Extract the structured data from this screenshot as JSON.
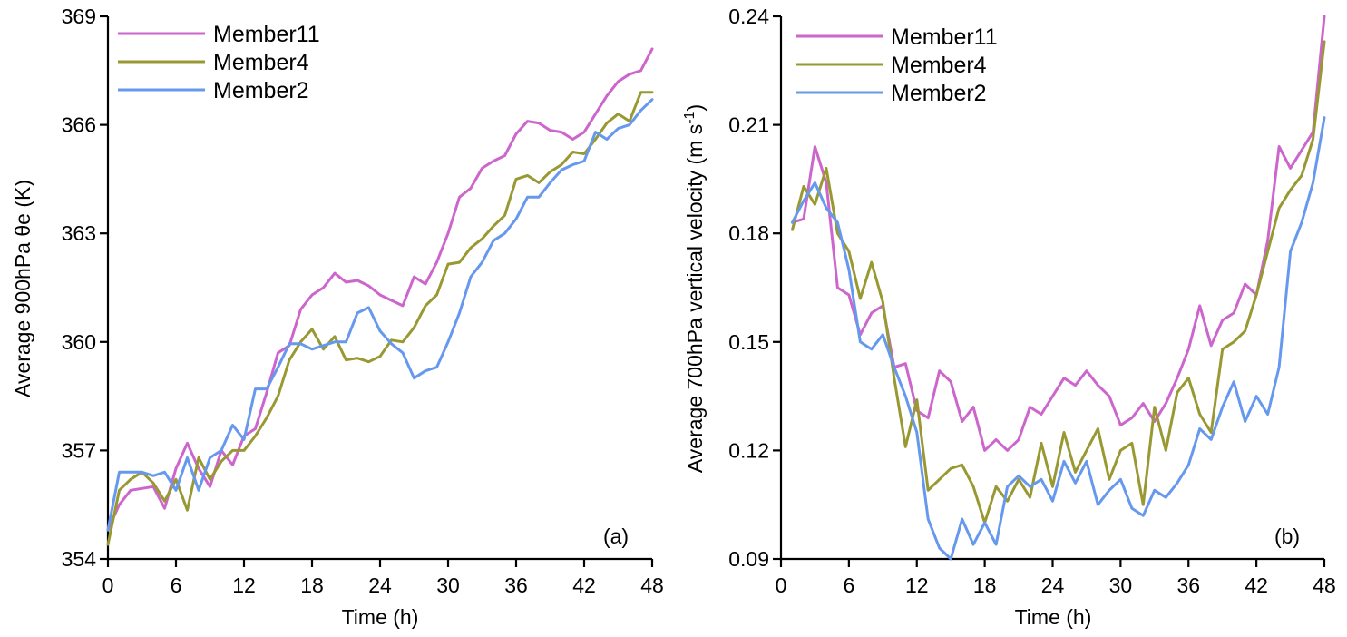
{
  "chart_data": [
    {
      "type": "line",
      "panel_label": "(a)",
      "xlabel": "Time (h)",
      "ylabel": "Average 900hPa θe (K)",
      "xlim": [
        0,
        48
      ],
      "ylim": [
        354,
        369
      ],
      "xticks": [
        0,
        6,
        12,
        18,
        24,
        30,
        36,
        42,
        48
      ],
      "xtick_labels": [
        "0",
        "6",
        "12",
        "18",
        "24",
        "30",
        "36",
        "42",
        "48"
      ],
      "yticks": [
        354,
        357,
        360,
        363,
        366,
        369
      ],
      "ytick_labels": [
        "354",
        "357",
        "360",
        "363",
        "366",
        "369"
      ],
      "legend_position": "top-left",
      "x": [
        0,
        1,
        2,
        3,
        4,
        5,
        6,
        7,
        8,
        9,
        10,
        11,
        12,
        13,
        14,
        15,
        16,
        17,
        18,
        19,
        20,
        21,
        22,
        23,
        24,
        25,
        26,
        27,
        28,
        29,
        30,
        31,
        32,
        33,
        34,
        35,
        36,
        37,
        38,
        39,
        40,
        41,
        42,
        43,
        44,
        45,
        46,
        47,
        48
      ],
      "series": [
        {
          "name": "Member11",
          "color": "#cc66cc",
          "values": [
            354.8,
            355.5,
            355.9,
            355.95,
            356.0,
            355.4,
            356.5,
            357.2,
            356.5,
            356.0,
            357.0,
            356.6,
            357.4,
            357.6,
            358.6,
            359.7,
            359.9,
            360.9,
            361.3,
            361.5,
            361.9,
            361.65,
            361.7,
            361.55,
            361.3,
            361.15,
            361.0,
            361.8,
            361.6,
            362.2,
            363.0,
            364.0,
            364.25,
            364.8,
            365.0,
            365.15,
            365.75,
            366.1,
            366.05,
            365.85,
            365.8,
            365.6,
            365.8,
            366.3,
            366.8,
            367.2,
            367.4,
            367.5,
            368.1
          ]
        },
        {
          "name": "Member4",
          "color": "#999933",
          "values": [
            354.4,
            355.9,
            356.2,
            356.4,
            356.1,
            355.6,
            356.2,
            355.35,
            356.8,
            356.2,
            356.7,
            357.0,
            357.0,
            357.4,
            357.9,
            358.5,
            359.5,
            360.0,
            360.35,
            359.8,
            360.15,
            359.5,
            359.55,
            359.45,
            359.6,
            360.05,
            360.0,
            360.4,
            361.0,
            361.3,
            362.15,
            362.2,
            362.6,
            362.85,
            363.2,
            363.5,
            364.5,
            364.6,
            364.4,
            364.7,
            364.9,
            365.25,
            365.2,
            365.6,
            366.05,
            366.3,
            366.1,
            366.9,
            366.9
          ]
        },
        {
          "name": "Member2",
          "color": "#6699ee",
          "values": [
            354.8,
            356.4,
            356.4,
            356.4,
            356.3,
            356.4,
            355.9,
            356.8,
            355.9,
            356.8,
            357.0,
            357.7,
            357.3,
            358.7,
            358.7,
            359.3,
            359.95,
            359.95,
            359.8,
            359.9,
            360.0,
            360.0,
            360.8,
            360.95,
            360.3,
            359.95,
            359.7,
            359.0,
            359.2,
            359.3,
            360.0,
            360.8,
            361.8,
            362.2,
            362.8,
            363.0,
            363.4,
            364.0,
            364.0,
            364.4,
            364.75,
            364.9,
            365.0,
            365.8,
            365.6,
            365.9,
            366.0,
            366.4,
            366.7
          ]
        }
      ]
    },
    {
      "type": "line",
      "panel_label": "(b)",
      "xlabel": "Time (h)",
      "ylabel": "Average 700hPa vertical velocity (m s",
      "ylabel_sup": "-1",
      "ylabel_end": ")",
      "xlim": [
        0,
        48
      ],
      "ylim": [
        0.09,
        0.24
      ],
      "xticks": [
        0,
        6,
        12,
        18,
        24,
        30,
        36,
        42,
        48
      ],
      "xtick_labels": [
        "0",
        "6",
        "12",
        "18",
        "24",
        "30",
        "36",
        "42",
        "48"
      ],
      "yticks": [
        0.09,
        0.12,
        0.15,
        0.18,
        0.21,
        0.24
      ],
      "ytick_labels": [
        "0.09",
        "0.12",
        "0.15",
        "0.18",
        "0.21",
        "0.24"
      ],
      "legend_position": "top-left",
      "x": [
        1,
        2,
        3,
        4,
        5,
        6,
        7,
        8,
        9,
        10,
        11,
        12,
        13,
        14,
        15,
        16,
        17,
        18,
        19,
        20,
        21,
        22,
        23,
        24,
        25,
        26,
        27,
        28,
        29,
        30,
        31,
        32,
        33,
        34,
        35,
        36,
        37,
        38,
        39,
        40,
        41,
        42,
        43,
        44,
        45,
        46,
        47,
        48
      ],
      "series": [
        {
          "name": "Member11",
          "color": "#cc66cc",
          "values": [
            0.183,
            0.184,
            0.204,
            0.194,
            0.165,
            0.163,
            0.152,
            0.158,
            0.16,
            0.143,
            0.144,
            0.131,
            0.129,
            0.142,
            0.139,
            0.128,
            0.132,
            0.12,
            0.123,
            0.12,
            0.123,
            0.132,
            0.13,
            0.135,
            0.14,
            0.138,
            0.142,
            0.138,
            0.135,
            0.127,
            0.129,
            0.133,
            0.128,
            0.133,
            0.14,
            0.148,
            0.16,
            0.149,
            0.156,
            0.158,
            0.166,
            0.163,
            0.178,
            0.204,
            0.198,
            0.203,
            0.208,
            0.24
          ]
        },
        {
          "name": "Member4",
          "color": "#999933",
          "values": [
            0.181,
            0.193,
            0.188,
            0.198,
            0.18,
            0.175,
            0.162,
            0.172,
            0.161,
            0.14,
            0.121,
            0.134,
            0.109,
            0.112,
            0.115,
            0.116,
            0.11,
            0.1,
            0.11,
            0.106,
            0.112,
            0.107,
            0.122,
            0.11,
            0.125,
            0.114,
            0.12,
            0.126,
            0.112,
            0.12,
            0.122,
            0.105,
            0.132,
            0.12,
            0.136,
            0.14,
            0.13,
            0.125,
            0.148,
            0.15,
            0.153,
            0.163,
            0.175,
            0.187,
            0.192,
            0.196,
            0.206,
            0.233
          ]
        },
        {
          "name": "Member2",
          "color": "#6699ee",
          "values": [
            0.183,
            0.189,
            0.194,
            0.187,
            0.183,
            0.17,
            0.15,
            0.148,
            0.152,
            0.143,
            0.135,
            0.125,
            0.101,
            0.093,
            0.09,
            0.101,
            0.094,
            0.1,
            0.094,
            0.11,
            0.113,
            0.11,
            0.112,
            0.106,
            0.117,
            0.111,
            0.117,
            0.105,
            0.109,
            0.112,
            0.104,
            0.102,
            0.109,
            0.107,
            0.111,
            0.116,
            0.126,
            0.123,
            0.132,
            0.139,
            0.128,
            0.135,
            0.13,
            0.143,
            0.175,
            0.183,
            0.194,
            0.212
          ]
        }
      ]
    }
  ]
}
